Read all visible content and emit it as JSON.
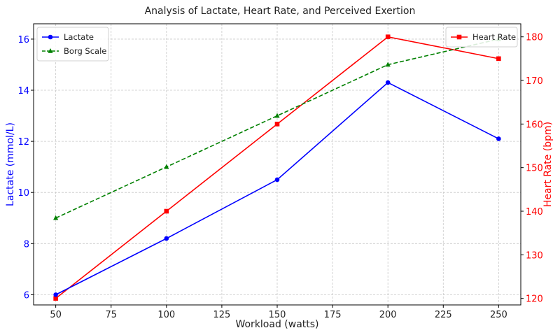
{
  "chart_data": {
    "type": "line",
    "title": "Analysis of Lactate, Heart Rate, and Perceived Exertion",
    "xlabel": "Workload (watts)",
    "ylabel_left": "Lactate (mmol/L)",
    "ylabel_right": "Heart Rate (bpm)",
    "x": [
      50,
      100,
      150,
      200,
      250
    ],
    "xlim": [
      40,
      260
    ],
    "ylim_left": [
      5.6,
      16.6
    ],
    "ylim_right": [
      118.5,
      183
    ],
    "x_ticks": [
      "50",
      "75",
      "100",
      "125",
      "150",
      "175",
      "200",
      "225",
      "250"
    ],
    "y_left_ticks": [
      "6",
      "8",
      "10",
      "12",
      "14",
      "16"
    ],
    "y_right_ticks": [
      "120",
      "130",
      "140",
      "150",
      "160",
      "170",
      "180"
    ],
    "grid": true,
    "series": [
      {
        "name": "Lactate",
        "axis": "left",
        "values": [
          6,
          8.2,
          10.5,
          14.3,
          12.1
        ],
        "color": "#0000ff",
        "marker": "circle",
        "line": "solid"
      },
      {
        "name": "Borg Scale",
        "axis": "left",
        "values": [
          9,
          11,
          13,
          15,
          16
        ],
        "color": "#008000",
        "marker": "triangle",
        "line": "dashed"
      },
      {
        "name": "Heart Rate",
        "axis": "right",
        "values": [
          120,
          140,
          160,
          180,
          175
        ],
        "color": "#ff0000",
        "marker": "square",
        "line": "solid"
      }
    ],
    "legend_left_placement": "top-left",
    "legend_right_placement": "top-right",
    "left_axis_color": "#0000ff",
    "right_axis_color": "#ff0000"
  }
}
